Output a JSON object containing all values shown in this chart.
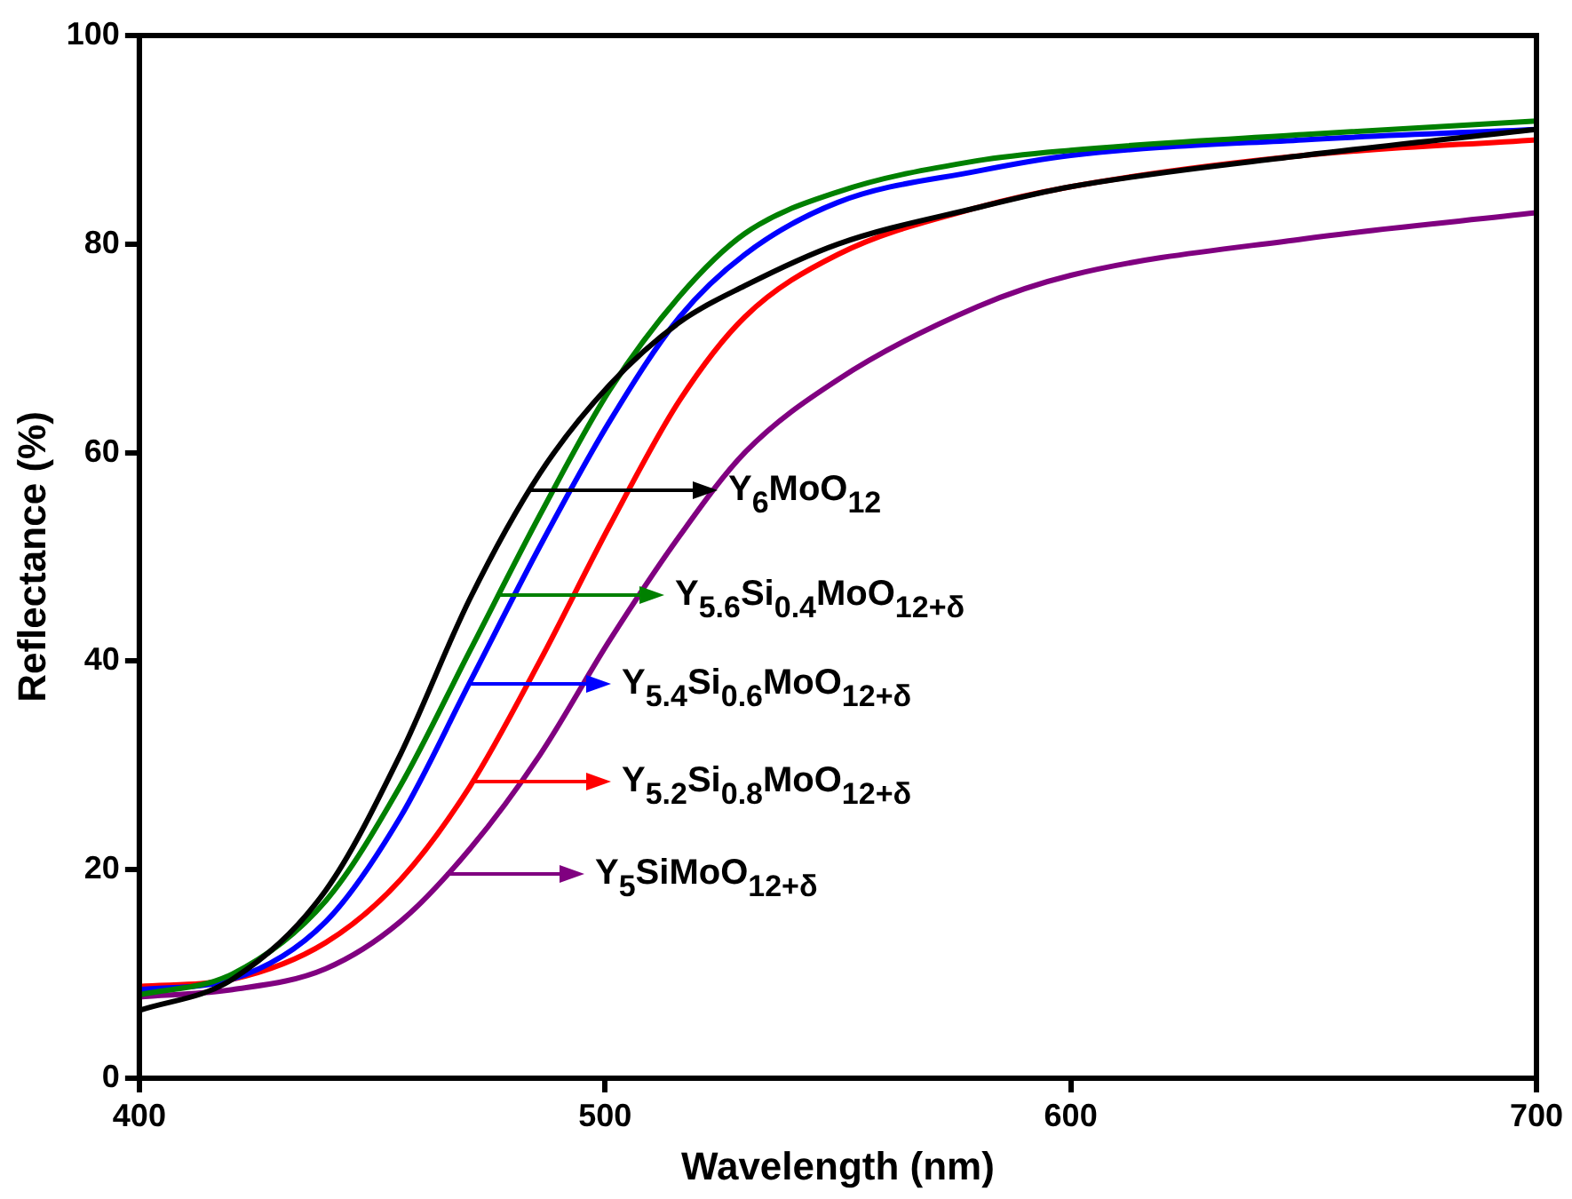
{
  "chart_data": {
    "type": "line",
    "xlabel": "Wavelength (nm)",
    "ylabel": "Reflectance (%)",
    "x": [
      400,
      420,
      440,
      456,
      471,
      486,
      501,
      516,
      530,
      550,
      580,
      600,
      650,
      700
    ],
    "xlim": [
      400,
      700
    ],
    "xticks": [
      400,
      500,
      600,
      700
    ],
    "ylim": [
      0,
      100
    ],
    "yticks": [
      0,
      20,
      40,
      60,
      80,
      100
    ],
    "grid": false,
    "legend": "center",
    "marker": "none",
    "line_style": "solid",
    "series": [
      {
        "name": "Y$_{6}$MoO$_{12}$",
        "color": "#000000",
        "values": [
          6.5,
          9.5,
          18,
          31,
          46,
          58,
          66.5,
          72.5,
          76,
          80,
          83.5,
          85.5,
          88.5,
          91
        ]
      },
      {
        "name": "Y$_{5.6}$Si$_{0.4}$MoO$_{12+δ}$",
        "color": "#008000",
        "values": [
          8,
          10,
          17,
          28,
          41,
          54,
          66,
          75,
          81,
          85,
          88,
          89,
          90.5,
          91.8
        ]
      },
      {
        "name": "Y$_{5.4}$Si$_{0.6}$MoO$_{12+δ}$",
        "color": "#0000ff",
        "values": [
          8.5,
          9.5,
          15,
          25,
          38,
          51,
          63,
          73,
          79,
          84,
          87,
          88.5,
          90,
          91
        ]
      },
      {
        "name": "Y$_{5.2}$Si$_{0.8}$MoO$_{12+δ}$",
        "color": "#ff0000",
        "values": [
          8.8,
          9.5,
          13,
          19,
          28,
          40,
          53,
          65,
          73,
          79,
          83.5,
          85.5,
          88.5,
          90
        ]
      },
      {
        "name": "Y$_{5}$SiMoO$_{12+δ}$",
        "color": "#800080",
        "values": [
          7.8,
          8.5,
          10.5,
          15,
          22,
          31,
          42,
          52,
          60,
          67,
          74,
          77,
          80.5,
          83
        ]
      }
    ]
  }
}
